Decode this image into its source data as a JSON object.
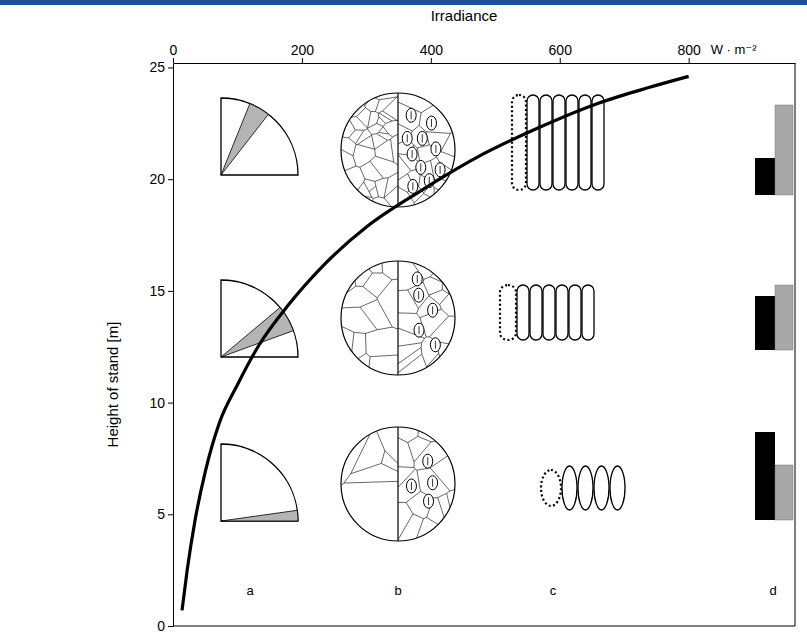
{
  "chart_data": {
    "type": "line",
    "xlabel": "Irradiance",
    "ylabel": "Height of stand [m]",
    "x": [
      14,
      22,
      34,
      50,
      72,
      100,
      134,
      177,
      232,
      302,
      380,
      473,
      567,
      660,
      738,
      800
    ],
    "values": [
      0.7,
      2.5,
      4.7,
      6.9,
      9.1,
      10.8,
      12.6,
      14.3,
      16.1,
      17.9,
      19.4,
      21.0,
      22.3,
      23.4,
      24.1,
      24.6
    ],
    "color": "#000000",
    "xlim": [
      0,
      965
    ],
    "xticks": [
      0,
      200,
      400,
      600,
      800
    ],
    "ylim": [
      0,
      25.2
    ],
    "yticks": [
      0,
      5,
      10,
      15,
      20,
      25
    ],
    "annotations": [
      "W · m⁻²",
      "a",
      "b",
      "c",
      "d"
    ]
  }
}
